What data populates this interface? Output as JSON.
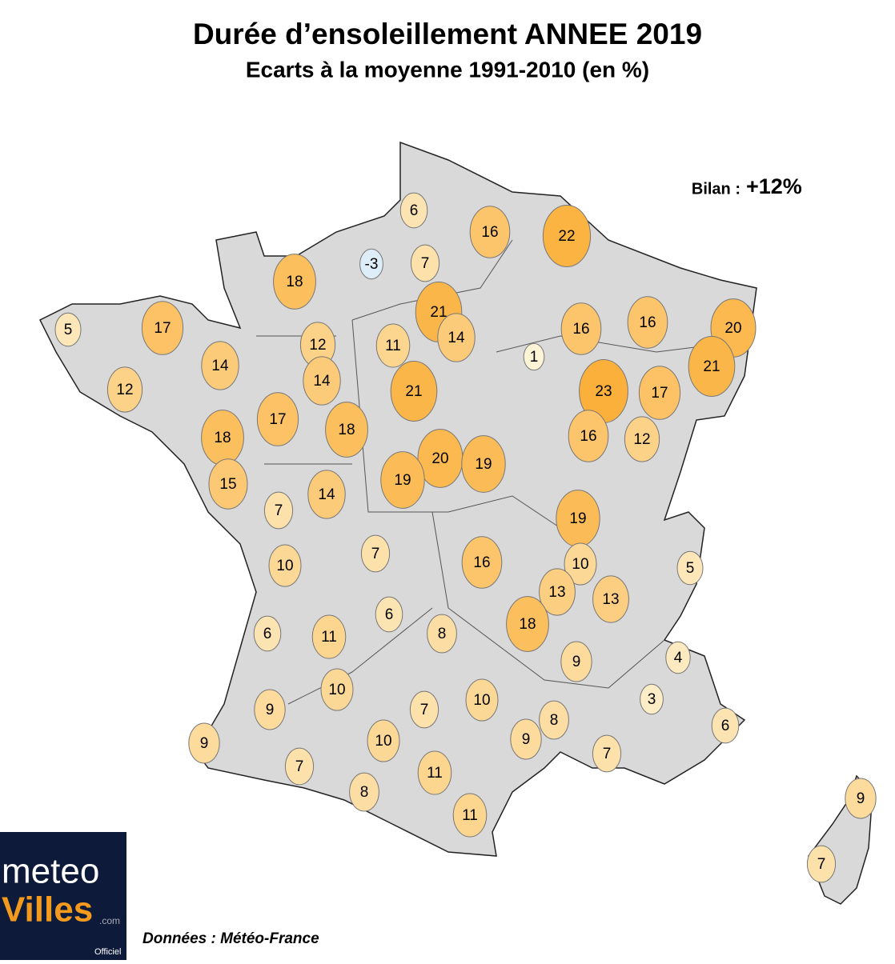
{
  "title": "Durée d’ensoleillement ANNEE 2019",
  "subtitle": "Ecarts à la moyenne 1991-2010 (en %)",
  "summary": {
    "label": "Bilan :",
    "value": "+12%"
  },
  "source": "Données : Météo-France",
  "logo": {
    "part1": "meteo",
    "part2": "Villes",
    "suffix": ".com",
    "tag": "Officiel"
  },
  "stations": [
    6,
    16,
    22,
    -3,
    7,
    18,
    21,
    5,
    17,
    16,
    16,
    20,
    12,
    11,
    14,
    1,
    14,
    21,
    12,
    14,
    21,
    23,
    17,
    18,
    17,
    18,
    16,
    12,
    20,
    19,
    19,
    15,
    14,
    7,
    19,
    10,
    7,
    16,
    10,
    5,
    13,
    13,
    6,
    6,
    11,
    8,
    18,
    9,
    4,
    10,
    9,
    10,
    7,
    3,
    8,
    9,
    6,
    9,
    10,
    7,
    7,
    11,
    8,
    11,
    9,
    7
  ]
}
